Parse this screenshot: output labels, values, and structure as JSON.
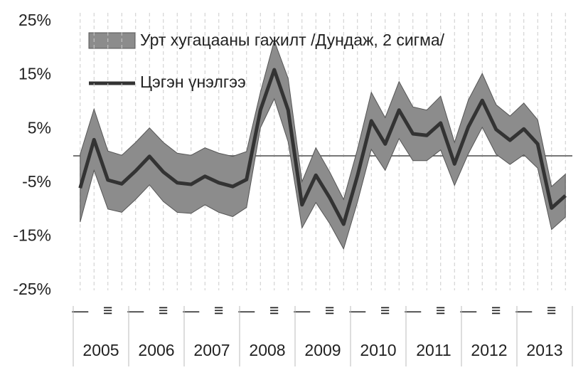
{
  "chart_data": {
    "type": "band-line",
    "categories": [
      "—",
      null,
      "≡",
      null,
      "—",
      null,
      "≡",
      null,
      "—",
      null,
      "≡",
      null,
      "—",
      null,
      "≡",
      null,
      "—",
      null,
      "≡",
      null,
      "—",
      null,
      "≡",
      null,
      "—",
      null,
      "≡",
      null,
      "—",
      null,
      "≡",
      null,
      "—",
      null,
      "≡",
      null
    ],
    "years": [
      "2005",
      "2006",
      "2007",
      "2008",
      "2009",
      "2010",
      "2011",
      "2012",
      "2013"
    ],
    "series": [
      {
        "name": "Урт хугацааны гажилт /Дундаж, 2 сигма/",
        "color": "#8c8c8c",
        "upper": [
          0.3,
          8.7,
          0.9,
          0.1,
          2.5,
          5.2,
          2.5,
          0.5,
          0.1,
          1.5,
          0.5,
          -0.1,
          0.8,
          11.8,
          21.4,
          14.4,
          -4.8,
          1.5,
          -3,
          -8.1,
          1.2,
          11.8,
          7.1,
          13.8,
          9.1,
          8.5,
          11.1,
          2.5,
          10.4,
          15.3,
          9.5,
          7.4,
          9.8,
          6.7,
          -5.7,
          -3.4
        ],
        "lower": [
          -12.3,
          -2.7,
          -9.9,
          -10.5,
          -8.1,
          -5.4,
          -8.5,
          -10.5,
          -10.7,
          -9.1,
          -10.5,
          -11.3,
          -9.6,
          5.2,
          10.6,
          2.6,
          -13.4,
          -8.7,
          -12.6,
          -17.3,
          -8.6,
          1.2,
          -2.7,
          3.2,
          -0.9,
          -0.9,
          1.1,
          -5.5,
          0.4,
          5.3,
          0.3,
          -1.6,
          0.2,
          -2.3,
          -13.7,
          -11.4
        ]
      },
      {
        "name": "Цэгэн үнэлгээ",
        "color": "#333333",
        "values": [
          -6,
          3,
          -4.5,
          -5.2,
          -2.8,
          -0.1,
          -3,
          -5,
          -5.3,
          -3.8,
          -5,
          -5.7,
          -4.4,
          8.5,
          16,
          8.5,
          -9.1,
          -3.6,
          -7.8,
          -12.7,
          -3.7,
          6.5,
          2.2,
          8.5,
          4.1,
          3.8,
          6.1,
          -1.5,
          5.4,
          10.3,
          4.9,
          2.9,
          5,
          2.2,
          -9.7,
          -7.4
        ]
      }
    ],
    "ylim": [
      -25,
      25
    ],
    "yticks": [
      {
        "value": 25,
        "label": "25%"
      },
      {
        "value": 15,
        "label": "15%"
      },
      {
        "value": 5,
        "label": "5%"
      },
      {
        "value": -5,
        "label": "-5%"
      },
      {
        "value": -15,
        "label": "-15%"
      },
      {
        "value": -25,
        "label": "-25%"
      }
    ]
  }
}
